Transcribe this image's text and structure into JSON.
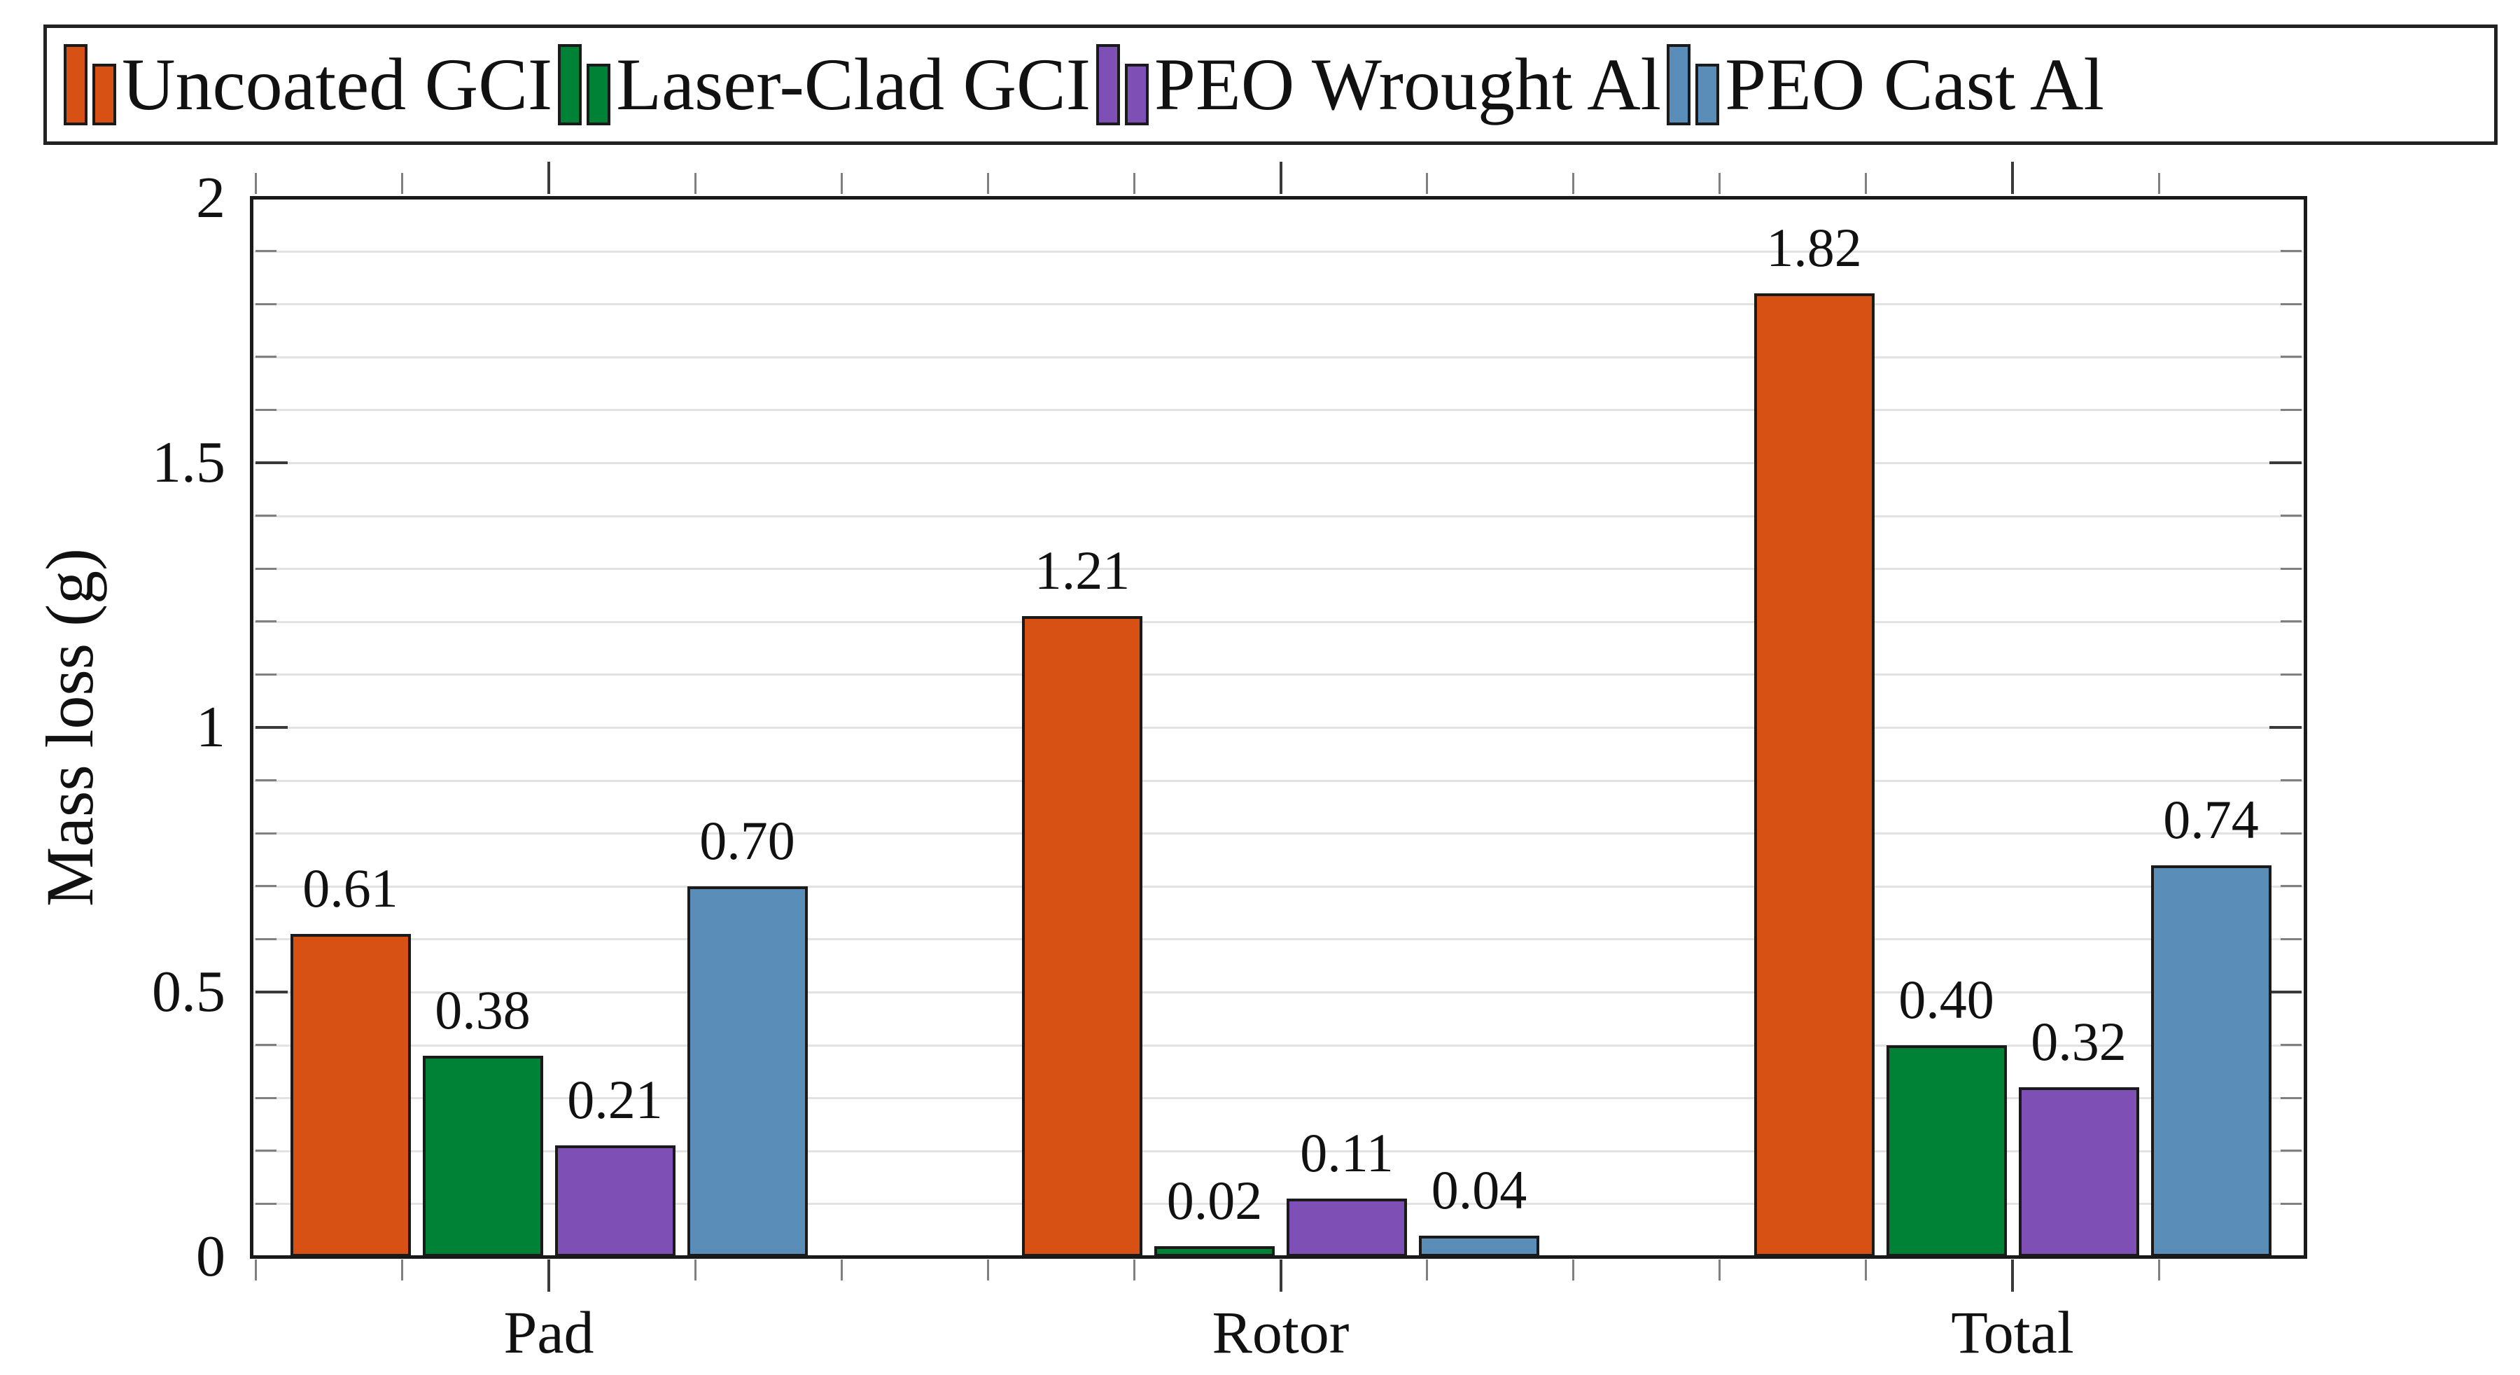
{
  "chart_data": {
    "type": "bar",
    "title": "",
    "ylabel": "Mass loss (g)",
    "categories": [
      "Pad",
      "Rotor",
      "Total"
    ],
    "series": [
      {
        "name": "Uncoated GCI",
        "color": "#d85114",
        "values": [
          0.61,
          1.21,
          1.82
        ],
        "labels": [
          "0.61",
          "1.21",
          "1.82"
        ]
      },
      {
        "name": "Laser-Clad GCI",
        "color": "#008236",
        "values": [
          0.38,
          0.02,
          0.4
        ],
        "labels": [
          "0.38",
          "0.02",
          "0.40"
        ]
      },
      {
        "name": "PEO Wrought Al",
        "color": "#7e4fb4",
        "values": [
          0.21,
          0.11,
          0.32
        ],
        "labels": [
          "0.21",
          "0.11",
          "0.32"
        ]
      },
      {
        "name": "PEO Cast Al",
        "color": "#5b8db9",
        "values": [
          0.7,
          0.04,
          0.74
        ],
        "labels": [
          "0.70",
          "0.04",
          "0.74"
        ]
      }
    ],
    "y_ticks": [
      {
        "label": "0",
        "value": 0
      },
      {
        "label": "0.5",
        "value": 0.5
      },
      {
        "label": "1",
        "value": 1
      },
      {
        "label": "1.5",
        "value": 1.5
      },
      {
        "label": "2",
        "value": 2
      }
    ],
    "ylim": [
      0,
      2
    ],
    "minor_grid_step": 0.1,
    "grid": "horizontal-minor",
    "legend_position": "top",
    "bar_edge_color": "#1a1a1a"
  }
}
